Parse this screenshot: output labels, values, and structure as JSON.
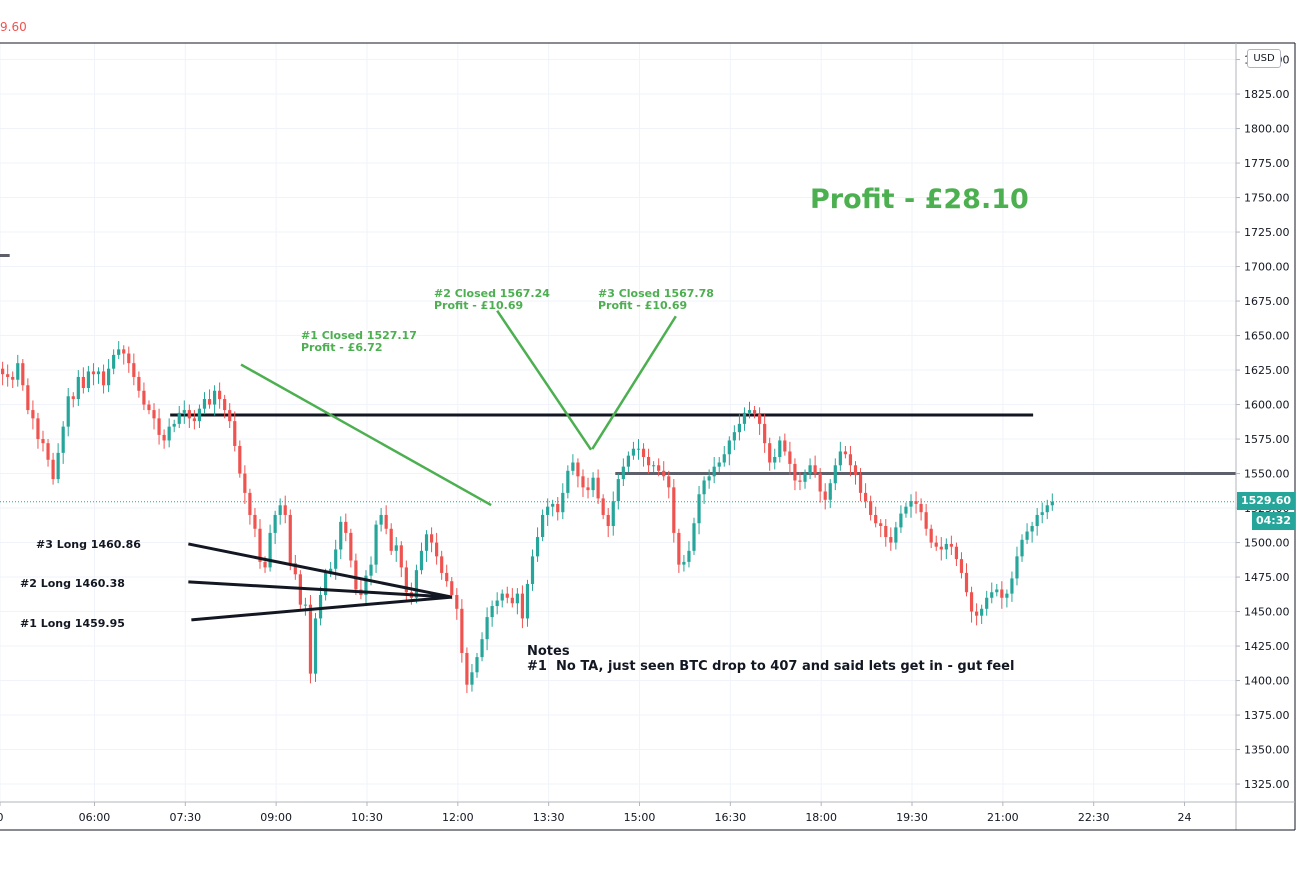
{
  "header": {
    "last_price_fragment": "9.60"
  },
  "price_axis": {
    "currency": "USD"
  },
  "price_tag": "1529.60",
  "countdown": "04:32",
  "profit_total": "Profit - £28.10",
  "notes": {
    "title": "Notes",
    "line1": "#1  No TA, just seen BTC drop to 407 and said lets get in - gut feel"
  },
  "colors": {
    "up": "#26a69a",
    "down": "#ef5350",
    "annotation": "#4caf50",
    "line": "#131722",
    "level": "#5d606b"
  },
  "chart_data": {
    "type": "candlestick",
    "title": "",
    "xlabel": "",
    "ylabel": "",
    "ylim": [
      1312,
      1862
    ],
    "y_ticks": [
      1850,
      1825,
      1800,
      1775,
      1750,
      1725,
      1700,
      1675,
      1650,
      1625,
      1600,
      1575,
      1550,
      1525,
      1500,
      1475,
      1450,
      1425,
      1400,
      1375,
      1350,
      1325
    ],
    "y_tick_labels": [
      "1850.00",
      "1825.00",
      "1800.00",
      "1775.00",
      "1750.00",
      "1725.00",
      "1700.00",
      "1675.00",
      "1650.00",
      "1625.00",
      "1600.00",
      "1575.00",
      "1550.00",
      "1525.00",
      "1500.00",
      "1475.00",
      "1450.00",
      "1425.00",
      "1400.00",
      "1375.00",
      "1350.00",
      "1325.00"
    ],
    "time_range_hours": [
      4.44,
      24.85
    ],
    "x_ticks": [
      {
        "label": "0",
        "t": 4.44
      },
      {
        "label": "06:00",
        "t": 6.0
      },
      {
        "label": "07:30",
        "t": 7.5
      },
      {
        "label": "09:00",
        "t": 9.0
      },
      {
        "label": "10:30",
        "t": 10.5
      },
      {
        "label": "12:00",
        "t": 12.0
      },
      {
        "label": "13:30",
        "t": 13.5
      },
      {
        "label": "15:00",
        "t": 15.0
      },
      {
        "label": "16:30",
        "t": 16.5
      },
      {
        "label": "18:00",
        "t": 18.0
      },
      {
        "label": "19:30",
        "t": 19.5
      },
      {
        "label": "21:00",
        "t": 21.0
      },
      {
        "label": "22:30",
        "t": 22.5
      },
      {
        "label": "24",
        "t": 24.0
      }
    ],
    "candles_start_hour": 4.4,
    "candle_interval_hours": 0.0833333,
    "closes": [
      1626,
      1622,
      1620,
      1618,
      1630,
      1614,
      1596,
      1590,
      1575,
      1572,
      1560,
      1546,
      1565,
      1584,
      1606,
      1604,
      1620,
      1612,
      1624,
      1622,
      1624,
      1614,
      1626,
      1636,
      1640,
      1637,
      1630,
      1620,
      1610,
      1600,
      1596,
      1590,
      1578,
      1574,
      1584,
      1586,
      1594,
      1596,
      1590,
      1588,
      1597,
      1604,
      1600,
      1610,
      1604,
      1596,
      1588,
      1570,
      1550,
      1536,
      1520,
      1510,
      1486,
      1482,
      1507,
      1520,
      1527,
      1520,
      1485,
      1477,
      1455,
      1455,
      1405,
      1445,
      1462,
      1478,
      1481,
      1495,
      1515,
      1507,
      1487,
      1466,
      1462,
      1476,
      1484,
      1513,
      1520,
      1510,
      1494,
      1498,
      1482,
      1464,
      1460,
      1480,
      1494,
      1506,
      1500,
      1490,
      1478,
      1472,
      1462,
      1452,
      1420,
      1397,
      1406,
      1417,
      1430,
      1446,
      1454,
      1458,
      1463,
      1460,
      1456,
      1463,
      1445,
      1470,
      1490,
      1504,
      1520,
      1526,
      1528,
      1522,
      1536,
      1552,
      1558,
      1548,
      1540,
      1538,
      1547,
      1532,
      1520,
      1512,
      1530,
      1546,
      1555,
      1563,
      1568,
      1568,
      1562,
      1556,
      1556,
      1552,
      1548,
      1540,
      1507,
      1484,
      1486,
      1494,
      1514,
      1535,
      1545,
      1548,
      1555,
      1558,
      1564,
      1574,
      1580,
      1586,
      1594,
      1596,
      1593,
      1586,
      1572,
      1558,
      1562,
      1574,
      1566,
      1557,
      1545,
      1544,
      1550,
      1556,
      1550,
      1537,
      1531,
      1543,
      1556,
      1566,
      1564,
      1556,
      1549,
      1536,
      1530,
      1520,
      1514,
      1512,
      1504,
      1500,
      1511,
      1521,
      1526,
      1530,
      1528,
      1522,
      1510,
      1500,
      1497,
      1495,
      1499,
      1497,
      1488,
      1478,
      1464,
      1450,
      1447,
      1452,
      1460,
      1464,
      1466,
      1460,
      1463,
      1474,
      1490,
      1502,
      1508,
      1512,
      1520,
      1522,
      1527,
      1529.6
    ],
    "horizontal_lines": [
      {
        "price": 1592.4,
        "t_start": 7.25,
        "t_end": 21.5,
        "color": "#131722"
      },
      {
        "price": 1550.0,
        "t_start": 14.6,
        "t_end": 24.85,
        "color": "#5d606b"
      },
      {
        "price": 1708.0,
        "t_start": 4.0,
        "t_end": 4.6,
        "color": "#5d606b"
      }
    ],
    "entries": [
      {
        "label": "#3 Long 1460.86",
        "price": 1460.86,
        "t_line_start": 7.55,
        "line_start_price": 1499
      },
      {
        "label": "#2 Long 1460.38",
        "price": 1460.38,
        "t_line_start": 7.55,
        "line_start_price": 1471.5
      },
      {
        "label": "#1 Long 1459.95",
        "price": 1459.95,
        "t_line_start": 7.6,
        "line_start_price": 1444
      }
    ],
    "entry_vertex": {
      "t": 11.9,
      "price": 1460.5
    },
    "closes_annotations": [
      {
        "title": "#1 Closed 1527.17",
        "profit": "Profit - £6.72",
        "t": 12.55,
        "price": 1527.17,
        "label_t": 7.9,
        "label_price": 1650,
        "line_t": 8.42,
        "line_price": 1629
      },
      {
        "title": "#2 Closed 1567.24",
        "profit": "Profit - £10.69",
        "t": 14.2,
        "price": 1567.24,
        "label_t": 10.05,
        "label_price": 1681,
        "line_t": 12.65,
        "line_price": 1668
      },
      {
        "title": "#3 Closed 1567.78",
        "profit": "Profit - £10.69",
        "t": 14.22,
        "price": 1567.78,
        "label_t": 14.3,
        "label_price": 1681,
        "line_t": 15.6,
        "line_price": 1664
      }
    ],
    "current_price": 1529.6,
    "grid": true,
    "legend": "none"
  }
}
